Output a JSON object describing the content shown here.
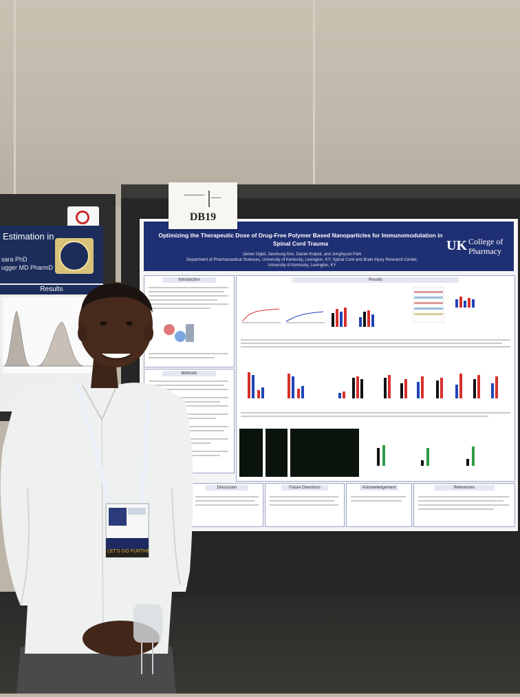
{
  "scene": {
    "description_free": true
  },
  "left_poster": {
    "title": "Estimation in",
    "authors_line1": "sara PhD",
    "authors_line2": "ugger MD PharmD",
    "results_heading": "Results"
  },
  "board_card": {
    "code": "DB19"
  },
  "main_poster": {
    "title": "Optimizing the Therapeutic Dose of Drug-Free Polymer Based Nanoparticles for Immunomodulation in Spinal Cord Trauma",
    "authors": "James Ogidi, Jaeshung Kim, Daniel Kolpek, and Jonghyuck Park",
    "affiliation": "Department of Pharmaceutical Sciences, University of Kentucky, Lexington, KY; Spinal Cord and Brain Injury Research Center, University of Kentucky, Lexington, KY",
    "logo_mark": "UK",
    "logo_text": "College of Pharmacy",
    "sections": {
      "introduction": "Introduction",
      "methods": "Methods",
      "results": "Results",
      "discussion": "Discussion",
      "future_directions": "Future Directions",
      "acknowledgement": "Acknowledgement",
      "references": "References"
    }
  },
  "badge": {
    "footer": "LET'S GO FURTHER"
  },
  "colors": {
    "poster_header": "#1f2f73",
    "bar_red": "#d7302c",
    "bar_blue": "#2244b8",
    "bar_green": "#2e9b47",
    "shirt": "#f2f3f3"
  }
}
